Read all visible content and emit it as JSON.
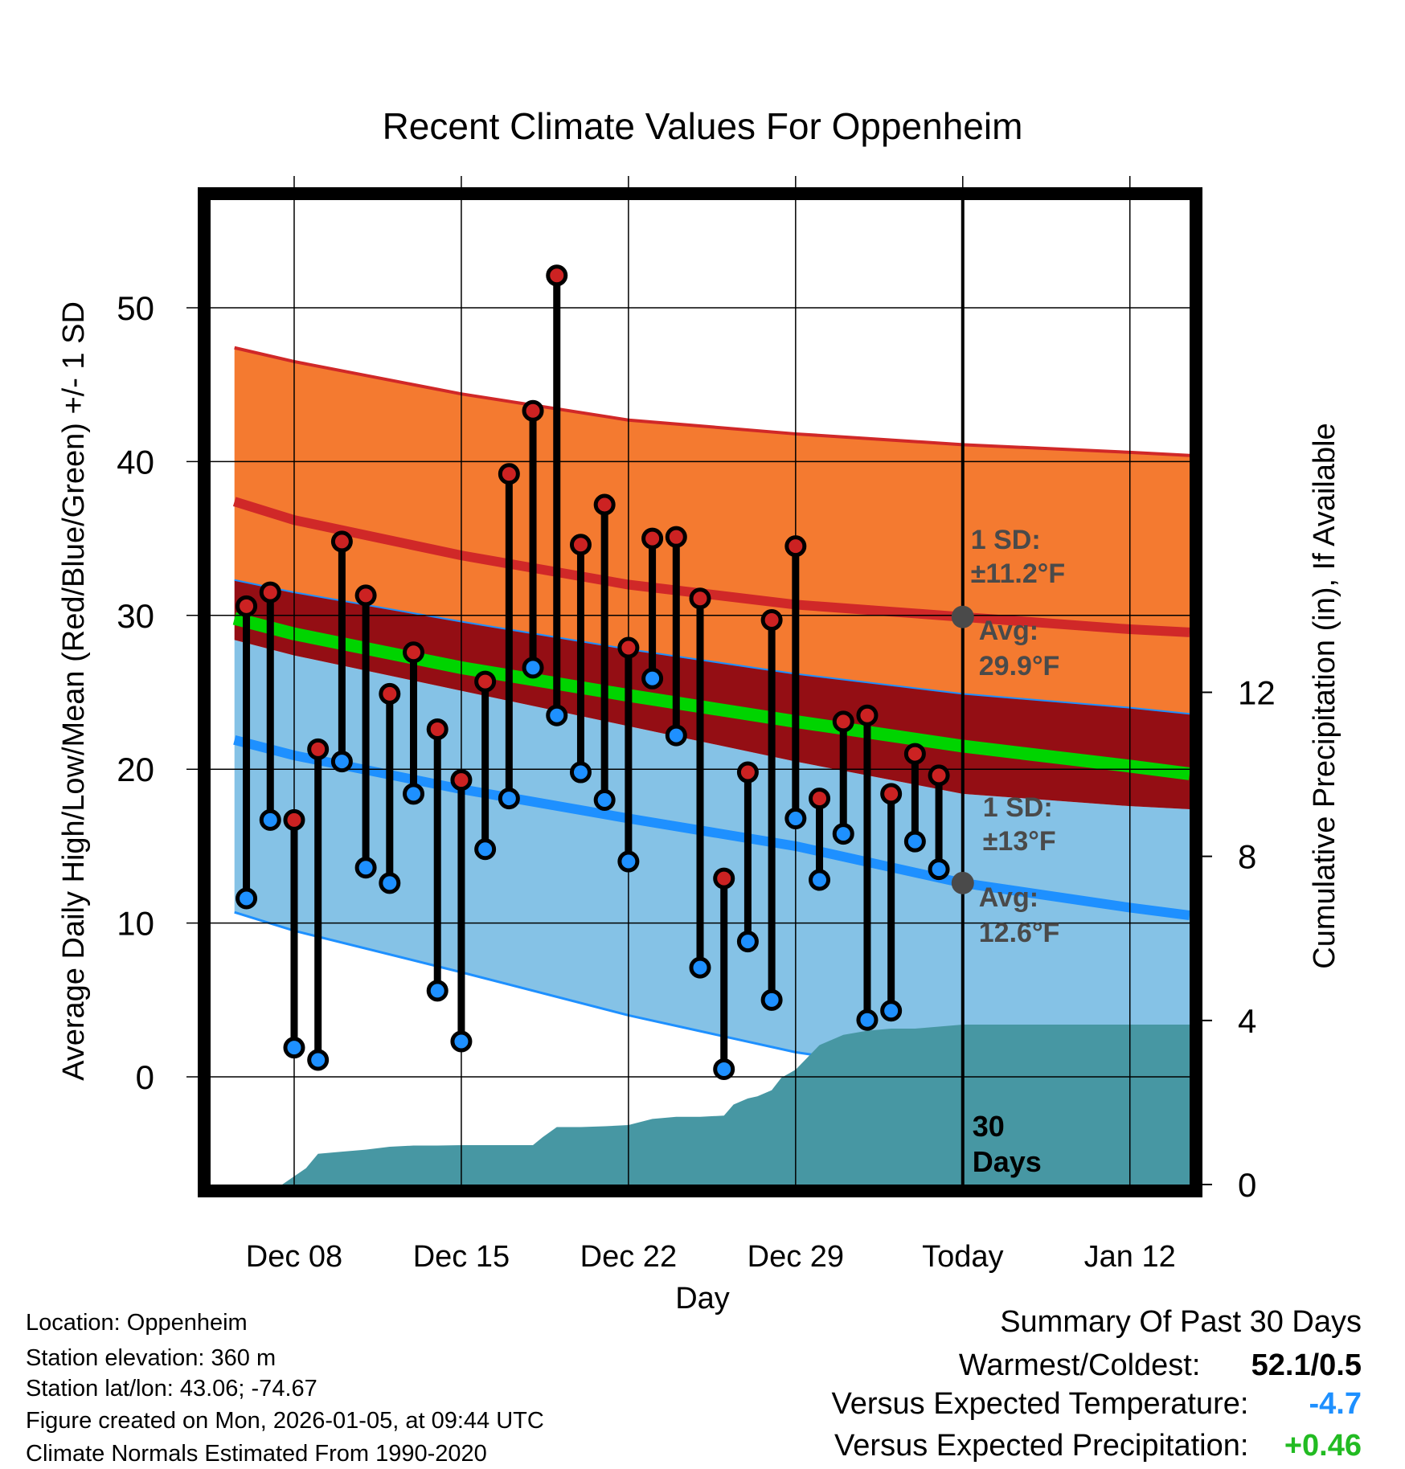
{
  "chart_data": {
    "type": "line",
    "title": "Recent Climate Values For Oppenheim",
    "xlabel": "Day",
    "ylabel": "Average Daily High/Low/Mean (Red/Blue/Green) +/- 1 SD",
    "y2label": "Cumulative Precipitation (in), If Available",
    "xlim": [
      -3.5,
      37.5
    ],
    "ylim": [
      -7,
      57
    ],
    "y2lim": [
      0,
      24
    ],
    "yticks": [
      0,
      10,
      20,
      30,
      40,
      50
    ],
    "y2ticks": [
      0,
      4,
      8,
      12
    ],
    "xticks": [
      {
        "x": 0,
        "label": "Dec 08"
      },
      {
        "x": 7,
        "label": "Dec 15"
      },
      {
        "x": 14,
        "label": "Dec 22"
      },
      {
        "x": 21,
        "label": "Dec 29"
      },
      {
        "x": 28,
        "label": "Today"
      },
      {
        "x": 35,
        "label": "Jan 12"
      }
    ],
    "today_x": 28,
    "today_label_1": "30",
    "today_label_2": "Days",
    "normals": {
      "x": [
        -2.5,
        0,
        7,
        14,
        21,
        28,
        35,
        37.5
      ],
      "high_mean": [
        37.4,
        36.2,
        33.9,
        32.0,
        30.7,
        29.9,
        29.1,
        28.9
      ],
      "high_upper": [
        47.4,
        46.5,
        44.4,
        42.7,
        41.8,
        41.1,
        40.6,
        40.4
      ],
      "high_lower": [
        32.3,
        31.5,
        29.6,
        27.8,
        26.2,
        24.9,
        24.0,
        23.6
      ],
      "mean": [
        29.8,
        28.8,
        26.6,
        24.8,
        23.1,
        21.5,
        20.2,
        19.7
      ],
      "low_mean": [
        21.9,
        20.9,
        18.7,
        16.8,
        15.0,
        12.6,
        11.0,
        10.5
      ],
      "low_upper": [
        28.4,
        27.4,
        25.1,
        22.8,
        20.5,
        18.4,
        17.6,
        17.4
      ],
      "low_lower": [
        10.7,
        9.5,
        6.8,
        4.0,
        1.6,
        0,
        0,
        0
      ]
    },
    "series": [
      {
        "name": "Daily High",
        "color": "#cc2222",
        "values": [
          30.6,
          31.5,
          16.7,
          21.3,
          34.8,
          31.3,
          24.9,
          27.6,
          22.6,
          19.3,
          25.7,
          39.2,
          43.3,
          52.1,
          34.6,
          37.2,
          27.9,
          35.0,
          35.1,
          31.1,
          12.9,
          19.8,
          29.7,
          34.5,
          18.1,
          23.1,
          23.5,
          18.4,
          21.0,
          19.6
        ]
      },
      {
        "name": "Daily Low",
        "color": "#1e90ff",
        "values": [
          11.6,
          16.7,
          1.9,
          1.1,
          20.5,
          13.6,
          12.6,
          18.4,
          5.6,
          2.3,
          14.8,
          18.1,
          26.6,
          23.5,
          19.8,
          18.0,
          14.0,
          25.9,
          22.2,
          7.1,
          0.5,
          8.8,
          5.0,
          16.8,
          12.8,
          15.8,
          3.7,
          4.3,
          15.3,
          13.5
        ]
      }
    ],
    "day_x": [
      -2,
      -1,
      0,
      1,
      2,
      3,
      4,
      5,
      6,
      7,
      8,
      9,
      10,
      11,
      12,
      13,
      14,
      15,
      16,
      17,
      18,
      19,
      20,
      21,
      22,
      23,
      24,
      25,
      26,
      27
    ],
    "precipitation": {
      "x": [
        -3.5,
        -1,
        -0.5,
        0.5,
        1,
        2,
        3,
        4,
        5,
        6,
        7,
        8,
        9,
        10,
        10.4,
        11,
        12,
        13,
        14,
        15,
        16,
        17,
        18,
        18.4,
        19,
        19.4,
        20,
        20.4,
        21,
        22,
        23,
        24,
        25,
        26,
        27,
        28,
        37.5
      ],
      "values": [
        0,
        0,
        0,
        0.4,
        0.75,
        0.8,
        0.85,
        0.92,
        0.95,
        0.95,
        0.96,
        0.96,
        0.96,
        0.96,
        1.15,
        1.4,
        1.4,
        1.42,
        1.45,
        1.6,
        1.65,
        1.65,
        1.68,
        1.95,
        2.1,
        2.15,
        2.3,
        2.6,
        2.8,
        3.4,
        3.65,
        3.75,
        3.8,
        3.8,
        3.85,
        3.9,
        3.9
      ]
    },
    "annotations": {
      "high_sd_label": "1 SD:",
      "high_sd_value": "±11.2°F",
      "high_avg_label": "Avg:",
      "high_avg_value": "29.9°F",
      "high_avg": 29.9,
      "low_sd_label": "1 SD:",
      "low_sd_value": "±13°F",
      "low_avg_label": "Avg:",
      "low_avg_value": "12.6°F",
      "low_avg": 12.6
    },
    "colors": {
      "high_band": "#f47a30",
      "low_band": "#85c2e6",
      "overlap": "#940e14",
      "mean_line": "#00d400",
      "high_line": "#d02828",
      "low_line": "#1e90ff",
      "precip": "#4797a3",
      "high_marker": "#cc2222",
      "low_marker": "#1e90ff",
      "marker_gray": "#4a4a4a"
    }
  },
  "info": {
    "location": "Location: Oppenheim",
    "elevation": "Station elevation: 360 m",
    "latlon": "Station lat/lon: 43.06; -74.67",
    "created": "Figure created on Mon, 2026-01-05, at 09:44 UTC",
    "normals": "Climate Normals Estimated From 1990-2020"
  },
  "summary": {
    "title": "Summary Of Past 30 Days",
    "warmest_coldest_label": "Warmest/Coldest:",
    "warmest_coldest_value": "52.1/0.5",
    "temp_label": "Versus Expected Temperature:",
    "temp_value": "-4.7",
    "temp_color": "#1e90ff",
    "precip_label": "Versus Expected Precipitation:",
    "precip_value": "+0.46",
    "precip_color": "#22bb22"
  }
}
